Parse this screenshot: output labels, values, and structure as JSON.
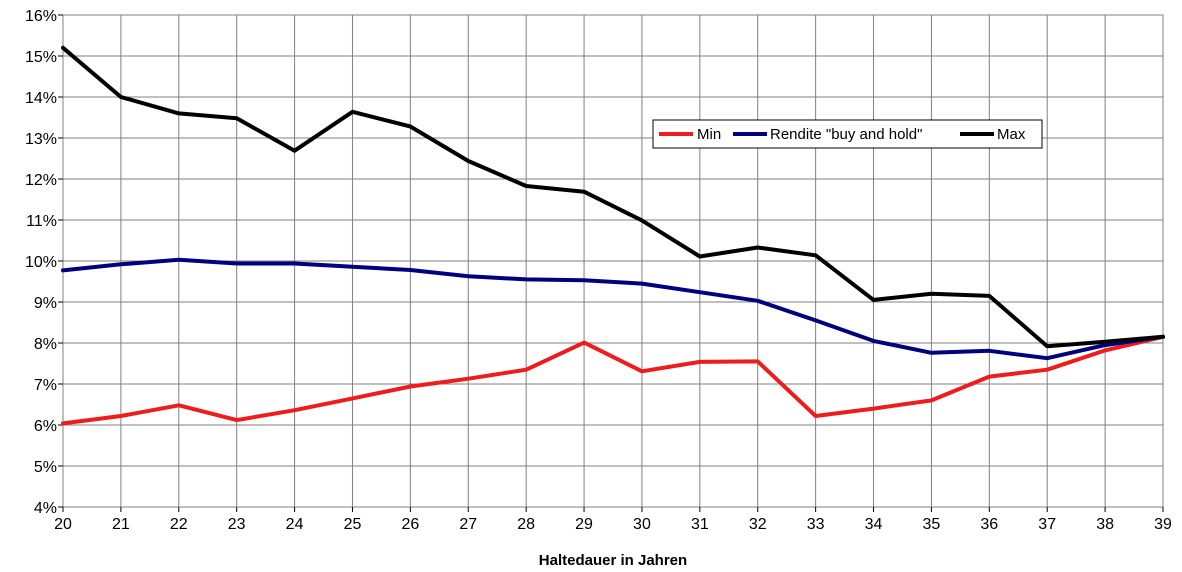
{
  "chart_data": {
    "type": "line",
    "title": "",
    "xlabel": "Haltedauer in Jahren",
    "ylabel": "",
    "x": [
      20,
      21,
      22,
      23,
      24,
      25,
      26,
      27,
      28,
      29,
      30,
      31,
      32,
      33,
      34,
      35,
      36,
      37,
      38,
      39
    ],
    "xlim": [
      20,
      39
    ],
    "ylim": [
      4,
      16
    ],
    "y_unit": "%",
    "y_ticks": [
      "4%",
      "5%",
      "6%",
      "7%",
      "8%",
      "9%",
      "10%",
      "11%",
      "12%",
      "13%",
      "14%",
      "15%",
      "16%"
    ],
    "grid": true,
    "legend_position": "upper-right",
    "series": [
      {
        "name": "Min",
        "color": "#ee1c1c",
        "values": [
          6.04,
          6.22,
          6.48,
          6.12,
          6.36,
          6.65,
          6.94,
          7.13,
          7.35,
          8.01,
          7.31,
          7.54,
          7.55,
          6.22,
          6.4,
          6.6,
          7.18,
          7.35,
          7.82,
          8.15
        ]
      },
      {
        "name": "Rendite \"buy and hold\"",
        "color": "#000080",
        "values": [
          9.77,
          9.92,
          10.03,
          9.94,
          9.94,
          9.86,
          9.78,
          9.63,
          9.55,
          9.53,
          9.45,
          9.24,
          9.03,
          8.55,
          8.05,
          7.76,
          7.81,
          7.63,
          7.95,
          8.15
        ]
      },
      {
        "name": "Max",
        "color": "#000000",
        "values": [
          15.2,
          14.0,
          13.6,
          13.48,
          12.69,
          13.64,
          13.28,
          12.44,
          11.83,
          11.69,
          10.99,
          10.11,
          10.33,
          10.14,
          9.05,
          9.2,
          9.15,
          7.92,
          8.03,
          8.15
        ]
      }
    ]
  }
}
